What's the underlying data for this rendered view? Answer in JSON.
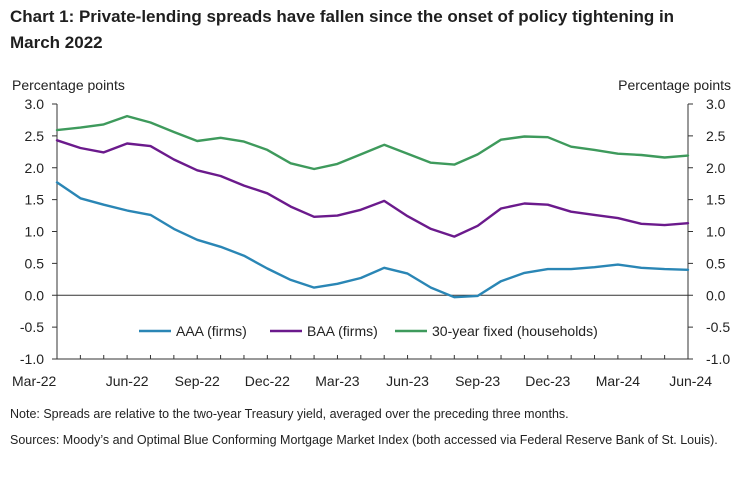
{
  "title": "Chart 1: Private-lending spreads have fallen since the onset of policy tightening in March 2022",
  "note": "Note: Spreads are relative to the two-year Treasury yield, averaged over the preceding three months.",
  "sources": "Sources: Moody’s and Optimal Blue Conforming Mortgage Market Index (both accessed via Federal Reserve Bank of St. Louis).",
  "chart_data": {
    "type": "line",
    "ylabel_left": "Percentage points",
    "ylabel_right": "Percentage points",
    "ylim": [
      -1.0,
      3.0
    ],
    "yticks": [
      "3.0",
      "2.5",
      "2.0",
      "1.5",
      "1.0",
      "0.5",
      "0.0",
      "-0.5",
      "-1.0"
    ],
    "ytick_values": [
      3.0,
      2.5,
      2.0,
      1.5,
      1.0,
      0.5,
      0.0,
      -0.5,
      -1.0
    ],
    "x": [
      "Mar-22",
      "Apr-22",
      "May-22",
      "Jun-22",
      "Jul-22",
      "Aug-22",
      "Sep-22",
      "Oct-22",
      "Nov-22",
      "Dec-22",
      "Jan-23",
      "Feb-23",
      "Mar-23",
      "Apr-23",
      "May-23",
      "Jun-23",
      "Jul-23",
      "Aug-23",
      "Sep-23",
      "Oct-23",
      "Nov-23",
      "Dec-23",
      "Jan-24",
      "Feb-24",
      "Mar-24",
      "Apr-24",
      "May-24",
      "Jun-24"
    ],
    "xtick_labels": [
      "Mar-22",
      "Jun-22",
      "Sep-22",
      "Dec-22",
      "Mar-23",
      "Jun-23",
      "Sep-23",
      "Dec-23",
      "Mar-24",
      "Jun-24"
    ],
    "xtick_indices": [
      0,
      3,
      6,
      9,
      12,
      15,
      18,
      21,
      24,
      27
    ],
    "legend_position": "bottom-center",
    "series": [
      {
        "name": "AAA (firms)",
        "color": "#2a86b5",
        "values": [
          1.77,
          1.52,
          1.42,
          1.33,
          1.26,
          1.04,
          0.87,
          0.76,
          0.62,
          0.42,
          0.24,
          0.12,
          0.18,
          0.27,
          0.43,
          0.34,
          0.12,
          -0.03,
          -0.01,
          0.22,
          0.35,
          0.41,
          0.41,
          0.44,
          0.48,
          0.43,
          0.41,
          0.4
        ]
      },
      {
        "name": "BAA (firms)",
        "color": "#6b1a8c",
        "values": [
          2.43,
          2.31,
          2.24,
          2.38,
          2.34,
          2.13,
          1.96,
          1.87,
          1.72,
          1.6,
          1.39,
          1.23,
          1.25,
          1.34,
          1.48,
          1.24,
          1.04,
          0.92,
          1.09,
          1.36,
          1.44,
          1.42,
          1.31,
          1.26,
          1.21,
          1.12,
          1.1,
          1.13
        ]
      },
      {
        "name": "30-year fixed (households)",
        "color": "#3e9a5c",
        "values": [
          2.59,
          2.63,
          2.68,
          2.81,
          2.71,
          2.56,
          2.42,
          2.47,
          2.41,
          2.28,
          2.07,
          1.98,
          2.06,
          2.21,
          2.36,
          2.22,
          2.08,
          2.05,
          2.21,
          2.44,
          2.49,
          2.48,
          2.33,
          2.28,
          2.22,
          2.2,
          2.16,
          2.19
        ]
      }
    ]
  }
}
